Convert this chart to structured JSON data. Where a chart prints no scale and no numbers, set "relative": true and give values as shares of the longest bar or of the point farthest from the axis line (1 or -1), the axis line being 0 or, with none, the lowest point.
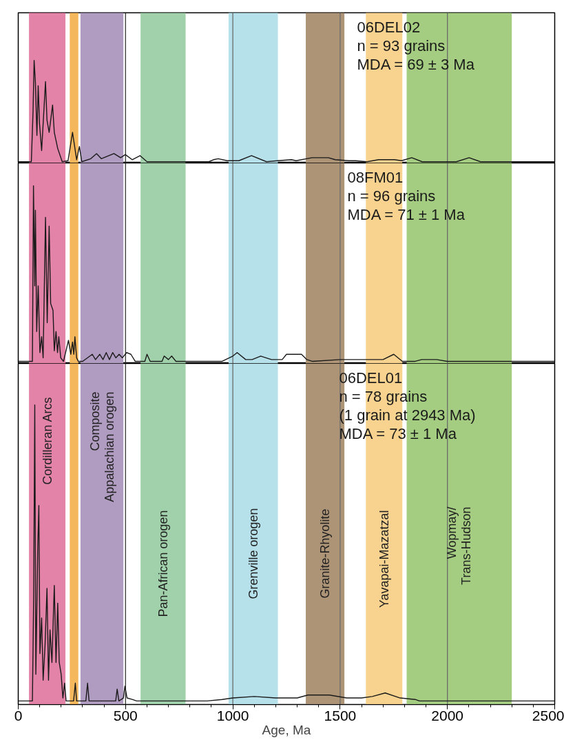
{
  "chart_data": [
    {
      "type": "line",
      "relative": true,
      "tick_labels": false,
      "xlim": [
        0,
        2500
      ],
      "annotations": [
        "06DEL02",
        "n = 93 grains",
        "MDA = 69 ± 3 Ma"
      ],
      "series": [
        {
          "color": "#1a1a1a",
          "x": [
            0,
            61,
            69,
            74,
            80,
            87,
            93,
            99,
            109,
            127,
            134,
            144,
            160,
            168,
            184,
            205,
            232,
            253,
            272,
            285,
            296,
            338,
            365,
            387,
            446,
            477,
            499,
            531,
            568,
            600,
            888,
            910,
            932,
            974,
            1028,
            1087,
            1157,
            1209,
            1273,
            1295,
            1369,
            1445,
            1477,
            1541,
            1573,
            1625,
            1680,
            1753,
            1786,
            1834,
            1882,
            2042,
            2101,
            2154,
            2500
          ],
          "values": [
            0,
            0,
            0.5,
            1.0,
            0.78,
            0.26,
            0.75,
            0.38,
            0.11,
            0.79,
            0.41,
            0.29,
            0.56,
            0.29,
            0.13,
            0,
            0.01,
            0.29,
            0.02,
            0.15,
            0,
            0.03,
            0.08,
            0.03,
            0.08,
            0.04,
            0.07,
            0.02,
            0.06,
            0,
            0,
            0.02,
            0.03,
            0.01,
            0.01,
            0.06,
            0,
            0.01,
            0.02,
            0.01,
            0.04,
            0.04,
            0.02,
            0.01,
            0.01,
            0,
            0.02,
            0.02,
            0.01,
            0.04,
            0,
            0,
            0.04,
            0,
            0
          ]
        }
      ],
      "bands": [
        {
          "axis": "x",
          "from": 50,
          "to": 220,
          "color": "#e383a8"
        },
        {
          "axis": "x",
          "from": 240,
          "to": 280,
          "color": "#f4b75c"
        },
        {
          "axis": "x",
          "from": 290,
          "to": 490,
          "color": "#b09bc1"
        },
        {
          "axis": "x",
          "from": 570,
          "to": 780,
          "color": "#a1d1ab"
        },
        {
          "axis": "x",
          "from": 980,
          "to": 1210,
          "color": "#b7e1ea"
        },
        {
          "axis": "x",
          "from": 1340,
          "to": 1520,
          "color": "#ad9477"
        },
        {
          "axis": "x",
          "from": 1620,
          "to": 1790,
          "color": "#f7d38f"
        },
        {
          "axis": "x",
          "from": 1810,
          "to": 2300,
          "color": "#a4cd81"
        }
      ],
      "ref_lines": [
        {
          "axis": "x",
          "value": 500,
          "color": "#333333"
        },
        {
          "axis": "x",
          "value": 1000,
          "color": "#6b6b6b"
        },
        {
          "axis": "x",
          "value": 1500,
          "color": "#6b6b6b"
        },
        {
          "axis": "x",
          "value": 2000,
          "color": "#6b6b6b"
        }
      ]
    },
    {
      "type": "line",
      "relative": true,
      "tick_labels": false,
      "xlim": [
        0,
        2500
      ],
      "annotations": [
        "08FM01",
        "n = 96 grains",
        "MDA = 71 ± 1 Ma"
      ],
      "series": [
        {
          "color": "#1a1a1a",
          "x": [
            0,
            66,
            71,
            77,
            80,
            86,
            93,
            101,
            109,
            116,
            127,
            135,
            144,
            151,
            162,
            168,
            176,
            183,
            189,
            198,
            211,
            234,
            245,
            253,
            259,
            264,
            272,
            280,
            300,
            345,
            360,
            380,
            395,
            410,
            425,
            440,
            455,
            470,
            485,
            505,
            525,
            545,
            590,
            600,
            615,
            670,
            680,
            700,
            715,
            735,
            950,
            1000,
            1020,
            1060,
            1090,
            1130,
            1180,
            1230,
            1250,
            1320,
            1345,
            1370,
            1500,
            1560,
            1700,
            1750,
            1790,
            1850,
            1880,
            1920,
            1950,
            2000,
            2500
          ],
          "values": [
            0,
            0,
            1.0,
            0.43,
            0.86,
            0.17,
            0.43,
            0.05,
            0.14,
            0.02,
            0.82,
            0.22,
            0.77,
            0.33,
            0.29,
            0.06,
            0.17,
            0.05,
            0.14,
            0.02,
            0,
            0.12,
            0.04,
            0.11,
            0.04,
            0.14,
            0.02,
            0,
            0,
            0.04,
            0.01,
            0.04,
            0.01,
            0.05,
            0.01,
            0.05,
            0.02,
            0.04,
            0.02,
            0.05,
            0.04,
            0,
            0,
            0.04,
            0,
            0,
            0.03,
            0.01,
            0.03,
            0,
            0,
            0.03,
            0.05,
            0.01,
            0.01,
            0.03,
            0.01,
            0.01,
            0.04,
            0.04,
            0.01,
            0,
            0.01,
            0.01,
            0.01,
            0.04,
            0,
            0,
            0.01,
            0.01,
            0.01,
            0,
            0
          ]
        }
      ],
      "bands": [
        {
          "axis": "x",
          "from": 50,
          "to": 220,
          "color": "#e383a8"
        },
        {
          "axis": "x",
          "from": 240,
          "to": 280,
          "color": "#f4b75c"
        },
        {
          "axis": "x",
          "from": 290,
          "to": 490,
          "color": "#b09bc1"
        },
        {
          "axis": "x",
          "from": 570,
          "to": 780,
          "color": "#a1d1ab"
        },
        {
          "axis": "x",
          "from": 980,
          "to": 1210,
          "color": "#b7e1ea"
        },
        {
          "axis": "x",
          "from": 1340,
          "to": 1520,
          "color": "#ad9477"
        },
        {
          "axis": "x",
          "from": 1620,
          "to": 1790,
          "color": "#f7d38f"
        },
        {
          "axis": "x",
          "from": 1810,
          "to": 2300,
          "color": "#a4cd81"
        }
      ],
      "ref_lines": [
        {
          "axis": "x",
          "value": 500,
          "color": "#333333"
        },
        {
          "axis": "x",
          "value": 1000,
          "color": "#6b6b6b"
        },
        {
          "axis": "x",
          "value": 1500,
          "color": "#6b6b6b"
        },
        {
          "axis": "x",
          "value": 2000,
          "color": "#6b6b6b"
        }
      ]
    },
    {
      "type": "line",
      "relative": true,
      "tick_labels": "x",
      "xlim": [
        0,
        2500
      ],
      "xlabel": "Age, Ma",
      "xticks": [
        0,
        {
          "value": 100,
          "label": null
        },
        {
          "value": 200,
          "label": null
        },
        {
          "value": 300,
          "label": null
        },
        {
          "value": 400,
          "label": null
        },
        500,
        {
          "value": 600,
          "label": null
        },
        {
          "value": 700,
          "label": null
        },
        {
          "value": 800,
          "label": null
        },
        {
          "value": 900,
          "label": null
        },
        1000,
        {
          "value": 1100,
          "label": null
        },
        {
          "value": 1200,
          "label": null
        },
        {
          "value": 1300,
          "label": null
        },
        {
          "value": 1400,
          "label": null
        },
        1500,
        {
          "value": 1600,
          "label": null
        },
        {
          "value": 1700,
          "label": null
        },
        {
          "value": 1800,
          "label": null
        },
        {
          "value": 1900,
          "label": null
        },
        2000,
        {
          "value": 2100,
          "label": null
        },
        {
          "value": 2200,
          "label": null
        },
        {
          "value": 2300,
          "label": null
        },
        {
          "value": 2400,
          "label": null
        },
        2500
      ],
      "annotations": [
        "06DEL01",
        "n = 78 grains",
        "(1 grain at 2943 Ma)",
        "MDA = 73 ± 1 Ma"
      ],
      "series": [
        {
          "color": "#1a1a1a",
          "x": [
            0,
            66,
            72,
            77,
            82,
            91,
            96,
            101,
            109,
            116,
            125,
            134,
            141,
            148,
            157,
            168,
            176,
            184,
            191,
            200,
            208,
            216,
            223,
            258,
            266,
            272,
            315,
            323,
            330,
            454,
            461,
            469,
            490,
            497,
            507,
            531,
            552,
            880,
            950,
            1000,
            1100,
            1200,
            1300,
            1350,
            1450,
            1530,
            1600,
            1650,
            1710,
            1780,
            1850,
            1870,
            2500
          ],
          "values": [
            0,
            0,
            0.36,
            1.0,
            0.09,
            0.52,
            0.66,
            0.16,
            0.28,
            0.07,
            0.19,
            0.38,
            0.07,
            0.24,
            0.13,
            0.39,
            0.13,
            0.33,
            0.13,
            0.09,
            0.01,
            0.06,
            0,
            0,
            0.06,
            0,
            0,
            0.06,
            0,
            0,
            0.04,
            0,
            0.01,
            0.05,
            0.01,
            0.005,
            0,
            0,
            0.005,
            0.01,
            0.015,
            0.01,
            0.01,
            0.02,
            0.02,
            0.01,
            0.01,
            0.015,
            0.027,
            0.01,
            0.005,
            0,
            0
          ]
        }
      ],
      "bands": [
        {
          "axis": "x",
          "from": 50,
          "to": 220,
          "color": "#e383a8",
          "label": "Cordilleran Arcs"
        },
        {
          "axis": "x",
          "from": 240,
          "to": 280,
          "color": "#f4b75c"
        },
        {
          "axis": "x",
          "from": 290,
          "to": 490,
          "color": "#b09bc1",
          "label": "Composite\nAppalachian orogen"
        },
        {
          "axis": "x",
          "from": 570,
          "to": 780,
          "color": "#a1d1ab",
          "label": "Pan-African orogen"
        },
        {
          "axis": "x",
          "from": 980,
          "to": 1210,
          "color": "#b7e1ea",
          "label": "Grenville orogen"
        },
        {
          "axis": "x",
          "from": 1340,
          "to": 1520,
          "color": "#ad9477",
          "label": "Granite-Rhyolite"
        },
        {
          "axis": "x",
          "from": 1620,
          "to": 1790,
          "color": "#f7d38f",
          "label": "Yavapai-Mazatzal"
        },
        {
          "axis": "x",
          "from": 1810,
          "to": 2300,
          "color": "#a4cd81",
          "label": "Wopmay/\nTrans-Hudson"
        }
      ],
      "ref_lines": [
        {
          "axis": "x",
          "value": 500,
          "color": "#333333"
        },
        {
          "axis": "x",
          "value": 1000,
          "color": "#6b6b6b"
        },
        {
          "axis": "x",
          "value": 1500,
          "color": "#6b6b6b"
        },
        {
          "axis": "x",
          "value": 2000,
          "color": "#6b6b6b"
        }
      ]
    }
  ]
}
